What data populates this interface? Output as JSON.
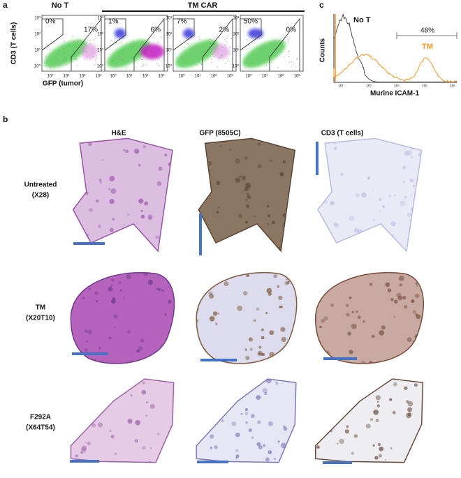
{
  "panel_a": {
    "label": "a",
    "groups": [
      "No T",
      "TM CAR"
    ],
    "y_axis_label": "CD3 (T cells)",
    "x_axis_label": "GFP (tumor)",
    "y_ticks": [
      "10³",
      "10²",
      "10¹",
      "10⁰"
    ],
    "x_ticks": [
      "10⁰",
      "10¹",
      "10²",
      "10³"
    ],
    "plots": [
      {
        "gates": [
          "0%",
          "17%"
        ]
      },
      {
        "gates": [
          "1%",
          "6%"
        ]
      },
      {
        "gates": [
          "7%",
          "2%"
        ]
      },
      {
        "gates": [
          "50%",
          "0%"
        ]
      }
    ]
  },
  "panel_c": {
    "label": "c",
    "series": [
      "No T",
      "TM"
    ],
    "gate": "48%",
    "y_axis_label": "Counts",
    "x_axis_label": "Murine ICAM-1",
    "x_ticks": [
      "10²",
      "10³",
      "10⁴",
      "10⁵",
      "10⁶"
    ]
  },
  "panel_b": {
    "label": "b",
    "columns": [
      "H&E",
      "GFP (8505C)",
      "CD3 (T cells)"
    ],
    "rows": [
      {
        "name": "Untreated",
        "id": "(X28)"
      },
      {
        "name": "TM",
        "id": "(X20T10)"
      },
      {
        "name": "F292A",
        "id": "(X64T54)"
      }
    ]
  }
}
